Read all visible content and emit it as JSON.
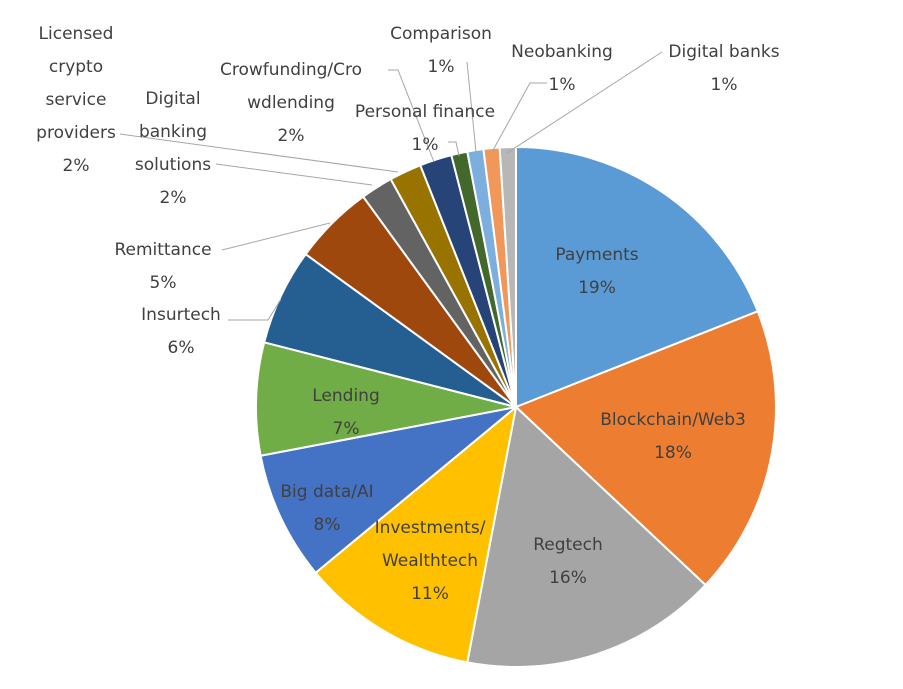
{
  "chart_data": {
    "type": "pie",
    "title": "",
    "slices": [
      {
        "label": "Payments",
        "value": 19,
        "value_label": "19%",
        "color": "#5b9bd5"
      },
      {
        "label": "Blockchain/Web3",
        "value": 18,
        "value_label": "18%",
        "color": "#ed7d31"
      },
      {
        "label": "Regtech",
        "value": 16,
        "value_label": "16%",
        "color": "#a5a5a5"
      },
      {
        "label": "Investments/ Wealthtech",
        "value": 11,
        "value_label": "11%",
        "color": "#ffc000"
      },
      {
        "label": "Big data/AI",
        "value": 8,
        "value_label": "8%",
        "color": "#4472c4"
      },
      {
        "label": "Lending",
        "value": 7,
        "value_label": "7%",
        "color": "#70ad47"
      },
      {
        "label": "Insurtech",
        "value": 6,
        "value_label": "6%",
        "color": "#255e91"
      },
      {
        "label": "Remittance",
        "value": 5,
        "value_label": "5%",
        "color": "#9e480e"
      },
      {
        "label": "Digital banking solutions",
        "value": 2,
        "value_label": "2%",
        "color": "#636363"
      },
      {
        "label": "Licensed crypto service providers",
        "value": 2,
        "value_label": "2%",
        "color": "#997300"
      },
      {
        "label": "Crowfunding/Crowdlending",
        "value": 2,
        "value_label": "2%",
        "color": "#264478"
      },
      {
        "label": "Personal finance",
        "value": 1,
        "value_label": "1%",
        "color": "#43682b"
      },
      {
        "label": "Comparison",
        "value": 1,
        "value_label": "1%",
        "color": "#7cafdd"
      },
      {
        "label": "Neobanking",
        "value": 1,
        "value_label": "1%",
        "color": "#f1975a"
      },
      {
        "label": "Digital banks",
        "value": 1,
        "value_label": "1%",
        "color": "#b7b7b7"
      }
    ],
    "legend": "none"
  }
}
